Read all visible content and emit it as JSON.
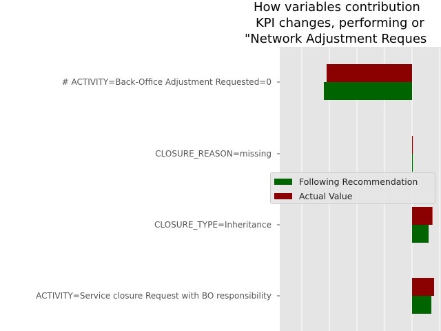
{
  "chart_data": {
    "type": "bar",
    "orientation": "horizontal",
    "title_lines": [
      "How variables contribution",
      "KPI changes, performing or",
      "\"Network Adjustment Reques"
    ],
    "categories": [
      "# ACTIVITY=Back-Office Adjustment Requested=0",
      "CLOSURE_REASON=missing",
      "CLOSURE_TYPE=Inheritance",
      "ACTIVITY=Service closure Request with BO responsibility"
    ],
    "series": [
      {
        "name": "Following Recommendation",
        "color": "#006400",
        "values": [
          -1.6,
          0.0,
          0.3,
          0.35
        ]
      },
      {
        "name": "Actual Value",
        "color": "#8b0000",
        "values": [
          -1.55,
          0.0,
          0.37,
          0.4
        ]
      }
    ],
    "xlim": [
      -2.4,
      0.55
    ],
    "grid": true,
    "background": "#e5e5e5",
    "legend_position": "center-right",
    "legend": [
      "Following Recommendation",
      "Actual Value"
    ]
  }
}
